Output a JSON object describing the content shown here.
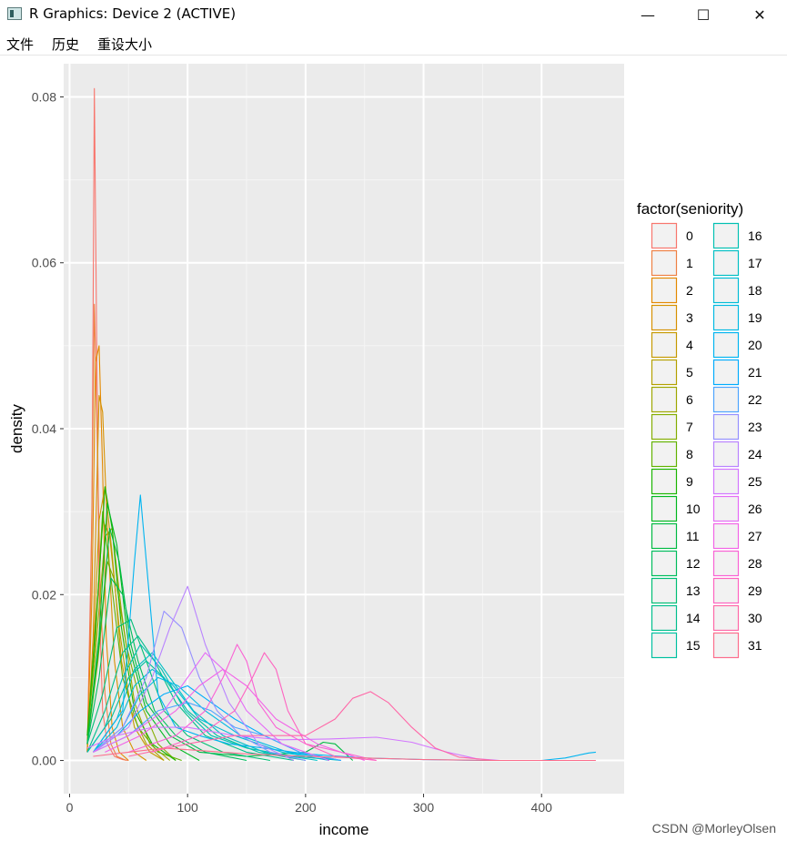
{
  "window": {
    "title": "R Graphics: Device 2 (ACTIVE)",
    "minimize": "—",
    "maximize": "☐",
    "close": "✕"
  },
  "menu": [
    {
      "label": "文件"
    },
    {
      "label": "历史"
    },
    {
      "label": "重设大小"
    }
  ],
  "watermark": "CSDN @MorleyOlsen",
  "chart_data": {
    "type": "line",
    "subtype": "density",
    "xlabel": "income",
    "ylabel": "density",
    "xlim": [
      -5,
      470
    ],
    "ylim": [
      -0.004,
      0.084
    ],
    "xticks": [
      0,
      100,
      200,
      300,
      400
    ],
    "yticks": [
      0.0,
      0.02,
      0.04,
      0.06,
      0.08
    ],
    "ytick_labels": [
      "0.00",
      "0.02",
      "0.04",
      "0.06",
      "0.08"
    ],
    "legend_title": "factor(seniority)",
    "legend_position": "right",
    "grid": true,
    "series": [
      {
        "name": "0",
        "color": "#F8766D",
        "x": [
          15,
          19,
          21,
          23,
          25,
          28,
          32,
          38,
          45,
          50
        ],
        "y": [
          0.001,
          0.03,
          0.081,
          0.05,
          0.02,
          0.006,
          0.002,
          0.0005,
          0.0001,
          0
        ]
      },
      {
        "name": "1",
        "color": "#EE8043",
        "x": [
          15,
          18,
          21,
          23,
          26,
          30,
          35,
          40,
          48
        ],
        "y": [
          0.001,
          0.02,
          0.055,
          0.042,
          0.02,
          0.008,
          0.002,
          0.0005,
          0
        ]
      },
      {
        "name": "2",
        "color": "#E38900",
        "x": [
          15,
          19,
          22,
          25,
          28,
          31,
          36,
          42,
          50
        ],
        "y": [
          0.001,
          0.02,
          0.048,
          0.05,
          0.035,
          0.015,
          0.004,
          0.001,
          0
        ]
      },
      {
        "name": "3",
        "color": "#D69100",
        "x": [
          15,
          20,
          25,
          28,
          32,
          38,
          45,
          55,
          65
        ],
        "y": [
          0.001,
          0.015,
          0.044,
          0.042,
          0.028,
          0.012,
          0.004,
          0.001,
          0
        ]
      },
      {
        "name": "4",
        "color": "#C59900",
        "x": [
          15,
          20,
          25,
          30,
          36,
          44,
          55,
          68,
          80
        ],
        "y": [
          0.002,
          0.012,
          0.029,
          0.033,
          0.025,
          0.012,
          0.004,
          0.001,
          0
        ]
      },
      {
        "name": "5",
        "color": "#B3A000",
        "x": [
          15,
          22,
          28,
          34,
          42,
          52,
          65,
          80
        ],
        "y": [
          0.002,
          0.015,
          0.029,
          0.027,
          0.016,
          0.006,
          0.002,
          0
        ]
      },
      {
        "name": "6",
        "color": "#9DA700",
        "x": [
          15,
          22,
          30,
          36,
          44,
          55,
          68,
          85
        ],
        "y": [
          0.003,
          0.013,
          0.027,
          0.028,
          0.018,
          0.007,
          0.002,
          0
        ]
      },
      {
        "name": "7",
        "color": "#84AD00",
        "x": [
          15,
          24,
          32,
          40,
          48,
          60,
          75,
          90
        ],
        "y": [
          0.002,
          0.012,
          0.024,
          0.021,
          0.014,
          0.007,
          0.002,
          0
        ]
      },
      {
        "name": "8",
        "color": "#62B200",
        "x": [
          15,
          22,
          28,
          35,
          45,
          58,
          75,
          95
        ],
        "y": [
          0.002,
          0.015,
          0.03,
          0.022,
          0.01,
          0.004,
          0.001,
          0
        ]
      },
      {
        "name": "9",
        "color": "#1BB500",
        "x": [
          15,
          24,
          30,
          36,
          44,
          55,
          70,
          90
        ],
        "y": [
          0.003,
          0.02,
          0.033,
          0.028,
          0.016,
          0.006,
          0.002,
          0
        ]
      },
      {
        "name": "10",
        "color": "#00B81F",
        "x": [
          15,
          25,
          32,
          40,
          50,
          65,
          85,
          110
        ],
        "y": [
          0.002,
          0.015,
          0.031,
          0.026,
          0.014,
          0.006,
          0.002,
          0
        ]
      },
      {
        "name": "11",
        "color": "#00BA42",
        "x": [
          15,
          25,
          34,
          42,
          52,
          65,
          85,
          110,
          150,
          200,
          215,
          225,
          240
        ],
        "y": [
          0.002,
          0.014,
          0.028,
          0.024,
          0.014,
          0.007,
          0.003,
          0.001,
          0.0005,
          0.001,
          0.0022,
          0.002,
          0
        ]
      },
      {
        "name": "12",
        "color": "#00BC5D",
        "x": [
          15,
          25,
          35,
          45,
          58,
          72,
          90,
          115,
          150
        ],
        "y": [
          0.002,
          0.01,
          0.022,
          0.02,
          0.012,
          0.006,
          0.003,
          0.001,
          0
        ]
      },
      {
        "name": "13",
        "color": "#00BE75",
        "x": [
          15,
          28,
          40,
          52,
          65,
          80,
          100,
          130,
          170
        ],
        "y": [
          0.002,
          0.008,
          0.016,
          0.017,
          0.012,
          0.006,
          0.003,
          0.001,
          0
        ]
      },
      {
        "name": "14",
        "color": "#00BF8C",
        "x": [
          15,
          30,
          45,
          58,
          72,
          90,
          115,
          150,
          190
        ],
        "y": [
          0.001,
          0.006,
          0.013,
          0.015,
          0.012,
          0.007,
          0.003,
          0.001,
          0
        ]
      },
      {
        "name": "15",
        "color": "#00C0A0",
        "x": [
          15,
          35,
          50,
          65,
          80,
          100,
          125,
          160,
          200
        ],
        "y": [
          0.001,
          0.005,
          0.01,
          0.012,
          0.01,
          0.006,
          0.003,
          0.001,
          0
        ]
      },
      {
        "name": "16",
        "color": "#00C0B2",
        "x": [
          15,
          30,
          45,
          60,
          78,
          98,
          120,
          150,
          190,
          230
        ],
        "y": [
          0.001,
          0.004,
          0.01,
          0.014,
          0.011,
          0.006,
          0.003,
          0.0015,
          0.0005,
          0
        ]
      },
      {
        "name": "17",
        "color": "#00BFC4",
        "x": [
          20,
          40,
          55,
          70,
          85,
          105,
          130,
          165,
          210
        ],
        "y": [
          0.001,
          0.005,
          0.011,
          0.013,
          0.01,
          0.006,
          0.003,
          0.001,
          0
        ]
      },
      {
        "name": "18",
        "color": "#00BCD5",
        "x": [
          20,
          40,
          55,
          70,
          88,
          110,
          140,
          180,
          220
        ],
        "y": [
          0.001,
          0.004,
          0.009,
          0.011,
          0.009,
          0.005,
          0.003,
          0.001,
          0
        ]
      },
      {
        "name": "19",
        "color": "#00B9E3",
        "x": [
          20,
          45,
          60,
          75,
          92,
          115,
          145,
          185,
          230
        ],
        "y": [
          0.001,
          0.004,
          0.008,
          0.01,
          0.009,
          0.006,
          0.003,
          0.001,
          0
        ]
      },
      {
        "name": "20",
        "color": "#00B4F0",
        "x": [
          20,
          45,
          55,
          60,
          65,
          75,
          90,
          110,
          135,
          165,
          200,
          250,
          300,
          350,
          400,
          420,
          440,
          446
        ],
        "y": [
          0.001,
          0.006,
          0.024,
          0.032,
          0.024,
          0.008,
          0.004,
          0.003,
          0.002,
          0.0015,
          0.0008,
          0.0003,
          0.0001,
          0,
          0,
          0.0003,
          0.0009,
          0.001
        ]
      },
      {
        "name": "21",
        "color": "#00ACFC",
        "x": [
          20,
          40,
          60,
          80,
          100,
          120,
          140,
          165,
          195,
          230
        ],
        "y": [
          0.001,
          0.003,
          0.006,
          0.008,
          0.009,
          0.007,
          0.005,
          0.003,
          0.001,
          0
        ]
      },
      {
        "name": "22",
        "color": "#4DA4FF",
        "x": [
          20,
          50,
          75,
          100,
          120,
          140,
          165,
          195,
          230
        ],
        "y": [
          0.001,
          0.003,
          0.006,
          0.007,
          0.006,
          0.004,
          0.003,
          0.001,
          0
        ]
      },
      {
        "name": "23",
        "color": "#9590FF",
        "x": [
          20,
          45,
          65,
          80,
          95,
          110,
          125,
          145,
          170,
          200
        ],
        "y": [
          0.001,
          0.004,
          0.01,
          0.018,
          0.016,
          0.01,
          0.006,
          0.003,
          0.001,
          0
        ]
      },
      {
        "name": "24",
        "color": "#B983FF",
        "x": [
          20,
          50,
          70,
          85,
          100,
          115,
          135,
          160,
          190
        ],
        "y": [
          0.001,
          0.004,
          0.01,
          0.016,
          0.021,
          0.014,
          0.007,
          0.002,
          0
        ]
      },
      {
        "name": "25",
        "color": "#D376FF",
        "x": [
          15,
          40,
          70,
          100,
          140,
          180,
          220,
          260,
          290,
          320,
          345,
          365
        ],
        "y": [
          0.0015,
          0.003,
          0.004,
          0.004,
          0.003,
          0.0025,
          0.0026,
          0.0028,
          0.0022,
          0.001,
          0.0002,
          0
        ]
      },
      {
        "name": "26",
        "color": "#E56BF6",
        "x": [
          20,
          50,
          80,
          100,
          115,
          130,
          150,
          180,
          220
        ],
        "y": [
          0.001,
          0.003,
          0.006,
          0.01,
          0.013,
          0.011,
          0.006,
          0.002,
          0
        ]
      },
      {
        "name": "27",
        "color": "#F264E7",
        "x": [
          30,
          60,
          90,
          110,
          130,
          150,
          175,
          210,
          250
        ],
        "y": [
          0.001,
          0.003,
          0.006,
          0.009,
          0.011,
          0.009,
          0.005,
          0.002,
          0
        ]
      },
      {
        "name": "28",
        "color": "#FA62D4",
        "x": [
          50,
          90,
          115,
          130,
          142,
          150,
          160,
          175,
          200,
          230,
          260
        ],
        "y": [
          0.001,
          0.003,
          0.006,
          0.01,
          0.014,
          0.012,
          0.007,
          0.004,
          0.002,
          0.001,
          0
        ]
      },
      {
        "name": "29",
        "color": "#FE63C0",
        "x": [
          70,
          110,
          140,
          155,
          165,
          175,
          185,
          200,
          225,
          260
        ],
        "y": [
          0.001,
          0.003,
          0.006,
          0.01,
          0.013,
          0.011,
          0.006,
          0.002,
          0.0005,
          0
        ]
      },
      {
        "name": "30",
        "color": "#FF67A7",
        "x": [
          50,
          100,
          140,
          170,
          200,
          225,
          240,
          255,
          270,
          290,
          310,
          330,
          360
        ],
        "y": [
          0.0005,
          0.002,
          0.003,
          0.003,
          0.003,
          0.005,
          0.0075,
          0.0083,
          0.007,
          0.004,
          0.0015,
          0.0004,
          0
        ]
      },
      {
        "name": "31",
        "color": "#FC6E8C",
        "x": [
          20,
          50,
          80,
          110,
          150,
          200,
          250,
          300,
          360,
          446
        ],
        "y": [
          0.0005,
          0.001,
          0.0015,
          0.0012,
          0.0008,
          0.0005,
          0.0003,
          0.0001,
          0,
          0
        ]
      }
    ]
  }
}
